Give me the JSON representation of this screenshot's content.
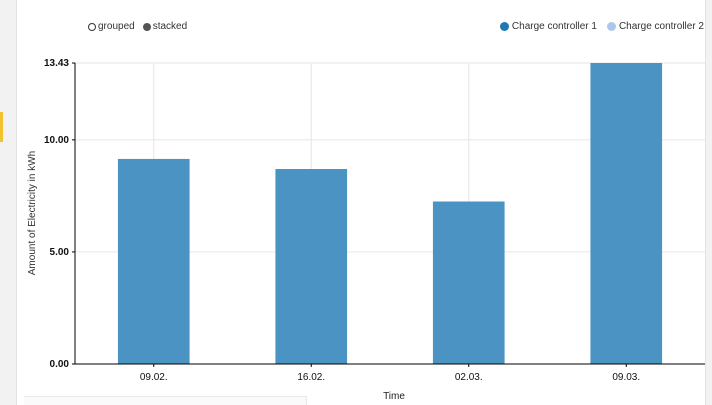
{
  "controls": {
    "grouped_label": "grouped",
    "stacked_label": "stacked",
    "selected": "stacked"
  },
  "legend": [
    {
      "label": "Charge controller 1",
      "color": "#1f77b4"
    },
    {
      "label": "Charge controller 2",
      "color": "#aec7e8"
    }
  ],
  "colors": {
    "bar": "#4b93c3",
    "grid": "#e6e6e6",
    "axis": "#000000"
  },
  "chart_data": {
    "type": "bar",
    "categories": [
      "09.02.",
      "16.02.",
      "02.03.",
      "09.03."
    ],
    "series": [
      {
        "name": "Charge controller 1",
        "values": [
          9.15,
          8.7,
          7.25,
          13.43
        ]
      },
      {
        "name": "Charge controller 2",
        "values": [
          0,
          0,
          0,
          0
        ]
      }
    ],
    "title": "",
    "xlabel": "Time",
    "ylabel": "Amount of Electricity in kWh",
    "ylim": [
      0,
      13.43
    ],
    "yticks": [
      "0.00",
      "5.00",
      "10.00",
      "13.43"
    ],
    "ytick_values": [
      0,
      5,
      10,
      13.43
    ],
    "grid": true,
    "legend_position": "top-right",
    "stacked": true
  }
}
